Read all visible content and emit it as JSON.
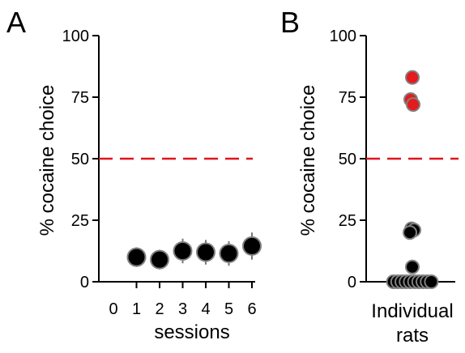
{
  "colors": {
    "axis": "#000000",
    "reference_line": "#e0141e",
    "point_fill": "#000000",
    "point_edge": "#808080",
    "highlight_fill": "#e41a1c"
  },
  "chart_data": [
    {
      "panel": "A",
      "type": "scatter",
      "xlabel": "sessions",
      "ylabel": "% cocaine choice",
      "xlim": [
        0,
        6
      ],
      "ylim": [
        0,
        100
      ],
      "xticks": [
        0,
        1,
        2,
        3,
        4,
        5,
        6
      ],
      "yticks": [
        0,
        25,
        50,
        75,
        100
      ],
      "reference_line": {
        "y": 50,
        "style": "dashed",
        "color": "#e0141e"
      },
      "x": [
        1,
        2,
        3,
        4,
        5,
        6
      ],
      "y": [
        10,
        9,
        12.5,
        12,
        11.5,
        14.5
      ],
      "error": [
        4,
        4,
        5,
        5,
        5,
        5.5
      ]
    },
    {
      "panel": "B",
      "type": "scatter",
      "xlabel": "Individual rats",
      "ylabel": "% cocaine choice",
      "ylim": [
        0,
        100
      ],
      "yticks": [
        0,
        25,
        50,
        75,
        100
      ],
      "reference_line": {
        "y": 50,
        "style": "dashed",
        "color": "#e0141e"
      },
      "points": [
        {
          "y": 83,
          "highlight": true
        },
        {
          "y": 74,
          "highlight": true
        },
        {
          "y": 72,
          "highlight": true
        },
        {
          "y": 21.5,
          "highlight": false
        },
        {
          "y": 21,
          "highlight": false
        },
        {
          "y": 20,
          "highlight": false
        },
        {
          "y": 6,
          "highlight": false
        },
        {
          "y": 0,
          "highlight": false
        },
        {
          "y": 0,
          "highlight": false
        },
        {
          "y": 0,
          "highlight": false
        },
        {
          "y": 0,
          "highlight": false
        },
        {
          "y": 0,
          "highlight": false
        },
        {
          "y": 0,
          "highlight": false
        },
        {
          "y": 0,
          "highlight": false
        },
        {
          "y": 0,
          "highlight": false
        },
        {
          "y": 0,
          "highlight": false
        },
        {
          "y": 0,
          "highlight": false
        }
      ]
    }
  ]
}
